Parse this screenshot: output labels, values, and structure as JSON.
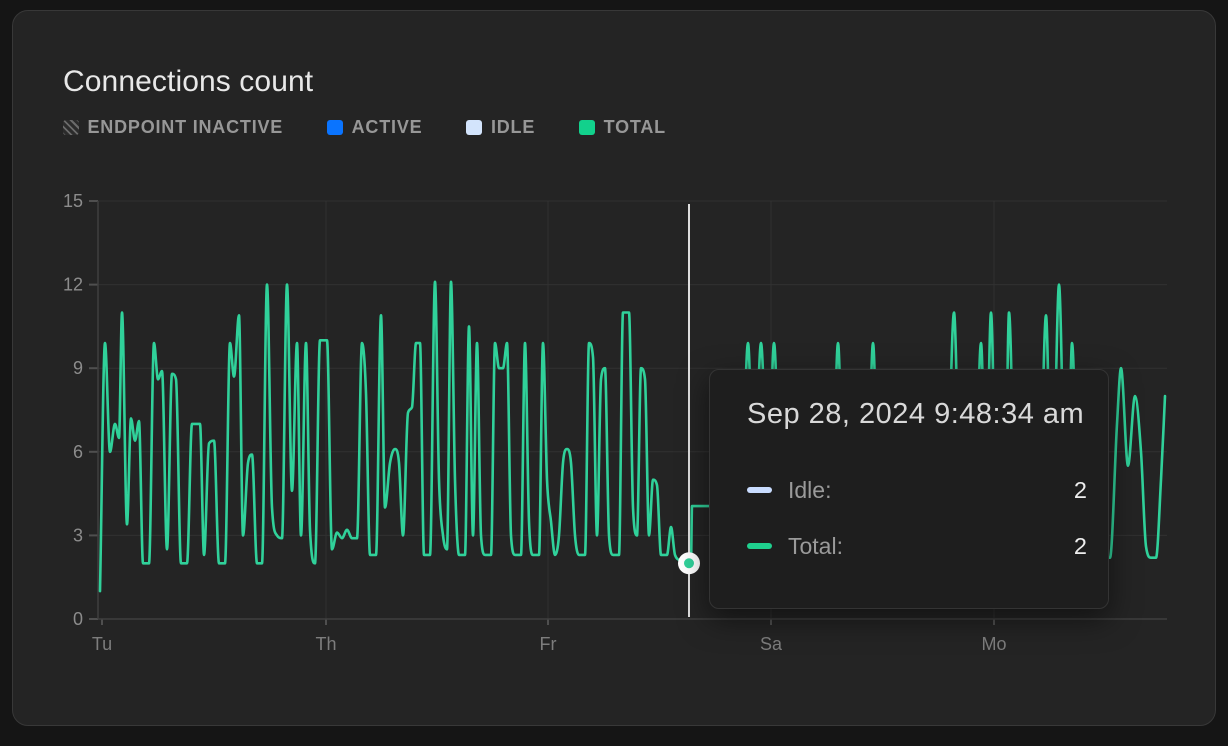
{
  "card": {
    "title": "Connections count"
  },
  "legend": [
    {
      "label": "ENDPOINT INACTIVE",
      "swatch": "hatched",
      "color": "#6a6a6a"
    },
    {
      "label": "ACTIVE",
      "swatch": "solid",
      "color": "#0a74ff"
    },
    {
      "label": "IDLE",
      "swatch": "solid",
      "color": "#d3e4fc"
    },
    {
      "label": "TOTAL",
      "swatch": "solid",
      "color": "#12d18c"
    }
  ],
  "tooltip": {
    "title": "Sep 28, 2024 9:48:34 am",
    "rows": [
      {
        "label": "Idle:",
        "value": "2",
        "color": "#c9dcff"
      },
      {
        "label": "Total:",
        "value": "2",
        "color": "#1fd08e"
      }
    ]
  },
  "chart_data": {
    "type": "line",
    "title": "Connections count",
    "ylim": [
      0,
      15
    ],
    "yticks": [
      0,
      3,
      6,
      9,
      12,
      15
    ],
    "xlim": [
      0,
      1069
    ],
    "xticks": [
      {
        "label": "Tu",
        "x": 4
      },
      {
        "label": "Th",
        "x": 228
      },
      {
        "label": "Fr",
        "x": 450
      },
      {
        "label": "Sa",
        "x": 673
      },
      {
        "label": "Mo",
        "x": 896
      }
    ],
    "grid": true,
    "cursor": {
      "x": 591,
      "marker_value": 2
    },
    "series": [
      {
        "name": "Total",
        "color": "#30d19a",
        "points": [
          [
            2,
            1
          ],
          [
            7,
            9.9
          ],
          [
            12,
            6
          ],
          [
            17,
            7
          ],
          [
            21,
            6.5
          ],
          [
            24,
            11
          ],
          [
            29,
            3.4
          ],
          [
            33,
            7.2
          ],
          [
            37,
            6.4
          ],
          [
            41,
            7.1
          ],
          [
            45,
            2
          ],
          [
            51,
            2
          ],
          [
            56,
            9.9
          ],
          [
            60,
            8.6
          ],
          [
            64,
            8.9
          ],
          [
            69,
            2.5
          ],
          [
            74,
            8.8
          ],
          [
            78,
            8.6
          ],
          [
            83,
            2
          ],
          [
            89,
            2
          ],
          [
            94,
            7
          ],
          [
            102,
            7
          ],
          [
            106,
            2.3
          ],
          [
            111,
            6.3
          ],
          [
            116,
            6.4
          ],
          [
            121,
            2
          ],
          [
            127,
            2
          ],
          [
            132,
            9.9
          ],
          [
            136,
            8.7
          ],
          [
            141,
            10.9
          ],
          [
            145,
            3
          ],
          [
            150,
            5.6
          ],
          [
            154,
            5.9
          ],
          [
            159,
            2
          ],
          [
            164,
            2
          ],
          [
            169,
            12
          ],
          [
            174,
            4
          ],
          [
            179,
            3
          ],
          [
            184,
            2.9
          ],
          [
            189,
            12
          ],
          [
            194,
            4.6
          ],
          [
            199,
            9.9
          ],
          [
            203,
            3
          ],
          [
            208,
            9.9
          ],
          [
            212,
            3.2
          ],
          [
            217,
            2
          ],
          [
            222,
            10
          ],
          [
            229,
            10
          ],
          [
            234,
            2.5
          ],
          [
            239,
            3.1
          ],
          [
            244,
            2.9
          ],
          [
            249,
            3.2
          ],
          [
            254,
            2.9
          ],
          [
            259,
            2.9
          ],
          [
            264,
            9.9
          ],
          [
            268,
            8.1
          ],
          [
            272,
            2.3
          ],
          [
            278,
            2.3
          ],
          [
            283,
            10.9
          ],
          [
            287,
            4
          ],
          [
            292,
            5.6
          ],
          [
            297,
            6.1
          ],
          [
            301,
            5.6
          ],
          [
            305,
            3
          ],
          [
            310,
            7.4
          ],
          [
            314,
            7.6
          ],
          [
            318,
            9.9
          ],
          [
            322,
            9.9
          ],
          [
            326,
            2.3
          ],
          [
            332,
            2.3
          ],
          [
            337,
            12.1
          ],
          [
            341,
            5
          ],
          [
            345,
            3
          ],
          [
            349,
            2.5
          ],
          [
            353,
            12.1
          ],
          [
            357,
            5
          ],
          [
            361,
            2.3
          ],
          [
            367,
            2.3
          ],
          [
            371,
            10.5
          ],
          [
            375,
            3
          ],
          [
            379,
            9.9
          ],
          [
            383,
            3
          ],
          [
            387,
            2.3
          ],
          [
            393,
            2.3
          ],
          [
            397,
            9.9
          ],
          [
            401,
            9
          ],
          [
            405,
            9
          ],
          [
            409,
            9.9
          ],
          [
            413,
            3
          ],
          [
            417,
            2.3
          ],
          [
            423,
            2.3
          ],
          [
            427,
            9.9
          ],
          [
            431,
            3.5
          ],
          [
            435,
            2.3
          ],
          [
            441,
            2.3
          ],
          [
            445,
            9.9
          ],
          [
            449,
            5
          ],
          [
            453,
            3.5
          ],
          [
            457,
            2.3
          ],
          [
            461,
            3
          ],
          [
            465,
            5.6
          ],
          [
            469,
            6.1
          ],
          [
            473,
            5.6
          ],
          [
            477,
            3
          ],
          [
            481,
            2.3
          ],
          [
            487,
            2.3
          ],
          [
            491,
            9.9
          ],
          [
            495,
            9.4
          ],
          [
            499,
            3
          ],
          [
            503,
            8.6
          ],
          [
            507,
            9
          ],
          [
            511,
            3
          ],
          [
            515,
            2.3
          ],
          [
            521,
            2.3
          ],
          [
            525,
            11
          ],
          [
            531,
            11
          ],
          [
            535,
            4
          ],
          [
            539,
            3
          ],
          [
            543,
            9
          ],
          [
            547,
            8.6
          ],
          [
            551,
            3
          ],
          [
            555,
            5
          ],
          [
            559,
            4.8
          ],
          [
            563,
            2.3
          ],
          [
            569,
            2.3
          ],
          [
            573,
            3.3
          ],
          [
            577,
            2.3
          ],
          [
            583,
            2.1
          ],
          [
            591,
            2
          ],
          [
            593,
            2
          ],
          [
            594,
            4.05
          ],
          [
            615,
            4.05
          ],
          [
            619,
            2.4
          ],
          [
            640,
            2.2
          ],
          [
            643,
            3
          ],
          [
            650,
            9.9
          ],
          [
            656,
            4.5
          ],
          [
            663,
            9.9
          ],
          [
            670,
            4.5
          ],
          [
            676,
            9.9
          ],
          [
            683,
            3
          ],
          [
            688,
            2.2
          ],
          [
            700,
            2.2
          ],
          [
            730,
            2.2
          ],
          [
            734,
            3
          ],
          [
            740,
            9.9
          ],
          [
            746,
            3
          ],
          [
            751,
            2.2
          ],
          [
            764,
            2.2
          ],
          [
            769,
            3
          ],
          [
            775,
            9.9
          ],
          [
            781,
            3
          ],
          [
            786,
            2.2
          ],
          [
            844,
            2.2
          ],
          [
            849,
            3.5
          ],
          [
            856,
            11
          ],
          [
            862,
            3.5
          ],
          [
            867,
            2.2
          ],
          [
            873,
            2.2
          ],
          [
            877,
            3.5
          ],
          [
            883,
            9.9
          ],
          [
            888,
            4.5
          ],
          [
            893,
            11
          ],
          [
            898,
            4.5
          ],
          [
            903,
            4
          ],
          [
            907,
            4
          ],
          [
            911,
            11
          ],
          [
            917,
            3.5
          ],
          [
            922,
            2.2
          ],
          [
            937,
            2.2
          ],
          [
            942,
            4
          ],
          [
            948,
            10.9
          ],
          [
            953,
            5
          ],
          [
            955,
            5
          ],
          [
            961,
            12
          ],
          [
            967,
            5
          ],
          [
            970,
            5
          ],
          [
            974,
            9.9
          ],
          [
            980,
            3.5
          ],
          [
            985,
            2.2
          ],
          [
            1012,
            2.2
          ],
          [
            1019,
            7
          ],
          [
            1023,
            9
          ],
          [
            1030,
            5.5
          ],
          [
            1037,
            8
          ],
          [
            1043,
            6
          ],
          [
            1048,
            2.6
          ],
          [
            1053,
            2.2
          ],
          [
            1058,
            2.2
          ],
          [
            1063,
            5
          ],
          [
            1067,
            8
          ]
        ]
      }
    ]
  }
}
